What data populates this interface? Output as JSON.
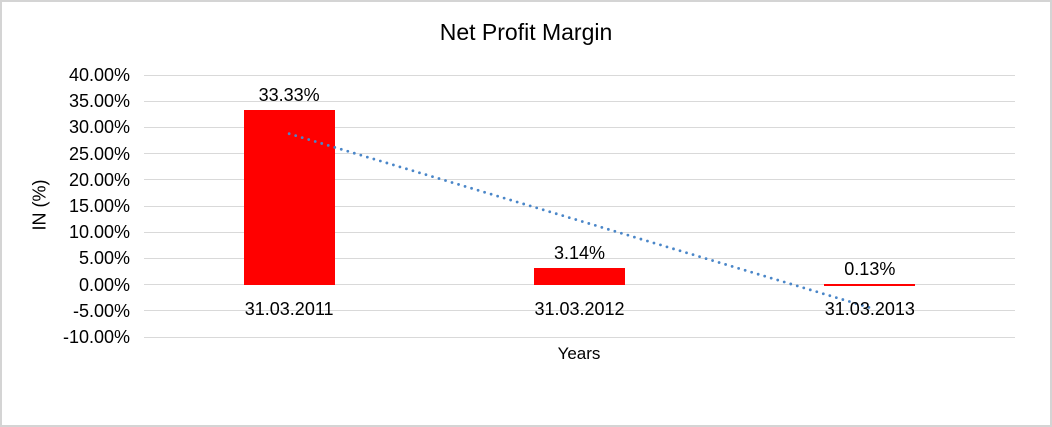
{
  "chart_data": {
    "type": "bar",
    "title": "Net Profit Margin",
    "categories": [
      "31.03.2011",
      "31.03.2012",
      "31.03.2013"
    ],
    "values": [
      33.33,
      3.14,
      0.13
    ],
    "value_labels": [
      "33.33%",
      "3.14%",
      "0.13%"
    ],
    "xlabel": "Years",
    "ylabel": "IN (%)",
    "ylim": [
      -10,
      40
    ],
    "ytick_step": 5,
    "ytick_labels": [
      "40.00%",
      "35.00%",
      "30.00%",
      "25.00%",
      "20.00%",
      "15.00%",
      "10.00%",
      "5.00%",
      "0.00%",
      "-5.00%",
      "-10.00%"
    ],
    "grid": true,
    "legend": "none",
    "bar_color": "#FF0000",
    "gridline_color": "#D9D9D9",
    "text_color": "#000000",
    "trendline": {
      "type": "linear",
      "style": "dotted",
      "color": "#4A86C8",
      "start_value": 28.8,
      "end_value": -4.4
    }
  }
}
